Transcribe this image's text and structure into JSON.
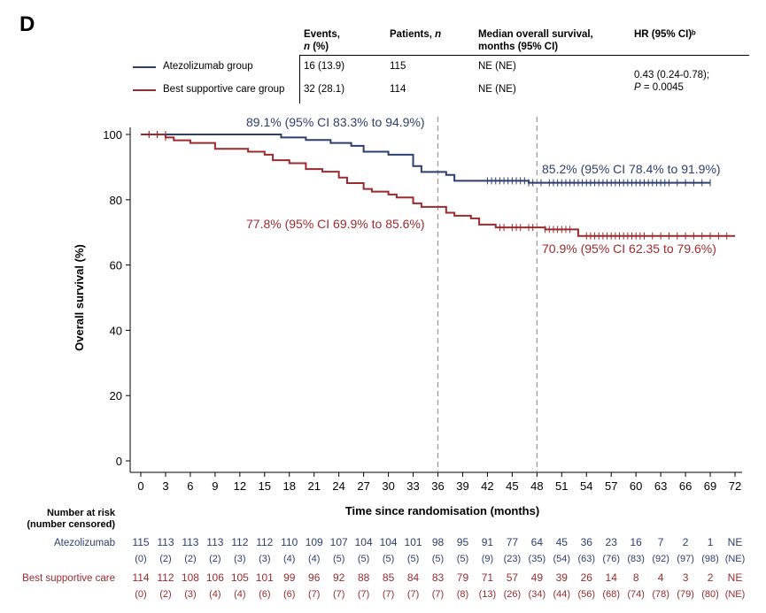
{
  "panel_label": "D",
  "summary_table": {
    "headers": {
      "events": [
        "Events,",
        "n (%)"
      ],
      "patients": "Patients, n",
      "median": [
        "Median overall survival,",
        "months (95% CI)"
      ],
      "hr": "HR (95% CI)ᵇ"
    },
    "rows": [
      {
        "group": "Atezolizumab group",
        "events": "16 (13.9)",
        "patients": "115",
        "median": "NE (NE)"
      },
      {
        "group": "Best supportive care group",
        "events": "32 (28.1)",
        "patients": "114",
        "median": "NE (NE)"
      }
    ],
    "hr_value": "0.43 (0.24-0.78);",
    "p_value": "P = 0.0045"
  },
  "colors": {
    "atezolizumab": "#2d3f6e",
    "bsc": "#9b2b2d",
    "dashed": "#999999"
  },
  "chart_data": {
    "type": "line",
    "step": true,
    "xlabel": "Time since randomisation (months)",
    "ylabel": "Overall survival (%)",
    "xlim": [
      0,
      72
    ],
    "ylim": [
      0,
      100
    ],
    "xticks": [
      0,
      3,
      6,
      9,
      12,
      15,
      18,
      21,
      24,
      27,
      30,
      33,
      36,
      39,
      42,
      45,
      48,
      51,
      54,
      57,
      60,
      63,
      66,
      69,
      72
    ],
    "yticks": [
      0,
      20,
      40,
      60,
      80,
      100
    ],
    "reference_lines_x": [
      36,
      48
    ],
    "series": [
      {
        "name": "Atezolizumab group",
        "color": "#2d3f6e",
        "x": [
          0,
          17,
          20,
          23,
          25.5,
          27,
          30,
          33,
          34,
          37,
          38,
          47,
          49,
          69
        ],
        "y": [
          100,
          99.1,
          98.3,
          97.4,
          96.5,
          94.7,
          93.8,
          90.3,
          88.5,
          87.6,
          85.8,
          85.2,
          85.2,
          85.2
        ],
        "censor_x": [
          1,
          2,
          3,
          42,
          42.5,
          43,
          43.5,
          44,
          44.5,
          45,
          45.5,
          46,
          46.5,
          47,
          47.5,
          48.5,
          49.5,
          50,
          50.5,
          51,
          51.5,
          52,
          52.5,
          53,
          53.5,
          54,
          54.5,
          55,
          55.5,
          56,
          56.5,
          57,
          57.5,
          58,
          58.5,
          59,
          59.5,
          60,
          60.5,
          61,
          61.5,
          62,
          62.5,
          63,
          63.5,
          64,
          65,
          66,
          67,
          68,
          69
        ]
      },
      {
        "name": "Best supportive care group",
        "color": "#9b2b2d",
        "x": [
          0,
          3,
          4,
          6,
          9,
          13,
          15,
          16,
          18,
          20,
          22,
          24,
          25,
          27,
          28,
          30,
          31,
          33,
          34,
          37,
          38,
          40,
          41,
          43,
          48,
          49,
          53,
          72
        ],
        "y": [
          100,
          99.1,
          98.2,
          97.4,
          95.6,
          94.7,
          93.8,
          92.1,
          91.2,
          89.4,
          88.6,
          86.8,
          85.1,
          83.3,
          82.5,
          81.6,
          80.7,
          78.9,
          77.8,
          76.0,
          75.1,
          74.3,
          72.4,
          71.5,
          71.5,
          70.9,
          68.9,
          68.9
        ],
        "censor_x": [
          1,
          2,
          3,
          43.5,
          44,
          45,
          45.5,
          46,
          47,
          47.5,
          49,
          49.5,
          50,
          50.5,
          51,
          51.5,
          52,
          54,
          54.5,
          55,
          55.5,
          56,
          56.5,
          57,
          57.5,
          58,
          58.5,
          59,
          59.5,
          60,
          60.5,
          61,
          62,
          63,
          64,
          65,
          66,
          67,
          68,
          69,
          70,
          71
        ]
      }
    ],
    "annotations": [
      {
        "text": "89.1% (95% CI 83.3% to 94.9%)",
        "series": 0
      },
      {
        "text": "85.2% (95% CI 78.4% to 91.9%)",
        "series": 0
      },
      {
        "text": "77.8% (95% CI 69.9% to 85.6%)",
        "series": 1
      },
      {
        "text": "70.9% (95% CI 62.35 to 79.6%)",
        "series": 1
      }
    ]
  },
  "risk_table": {
    "title": [
      "Number at risk",
      "(number censored)"
    ],
    "rows": [
      {
        "label": "Atezolizumab",
        "at_risk": [
          "115",
          "113",
          "113",
          "113",
          "112",
          "112",
          "110",
          "109",
          "107",
          "104",
          "104",
          "101",
          "98",
          "95",
          "91",
          "77",
          "64",
          "45",
          "36",
          "23",
          "16",
          "7",
          "2",
          "1",
          "NE"
        ],
        "censored": [
          "(0)",
          "(2)",
          "(2)",
          "(2)",
          "(3)",
          "(3)",
          "(4)",
          "(4)",
          "(5)",
          "(5)",
          "(5)",
          "(5)",
          "(5)",
          "(5)",
          "(9)",
          "(23)",
          "(35)",
          "(54)",
          "(63)",
          "(76)",
          "(83)",
          "(92)",
          "(97)",
          "(98)",
          "(NE)"
        ]
      },
      {
        "label": "Best supportive care",
        "at_risk": [
          "114",
          "112",
          "108",
          "106",
          "105",
          "101",
          "99",
          "96",
          "92",
          "88",
          "85",
          "84",
          "83",
          "79",
          "71",
          "57",
          "49",
          "39",
          "26",
          "14",
          "8",
          "4",
          "3",
          "2",
          "NE"
        ],
        "censored": [
          "(0)",
          "(2)",
          "(3)",
          "(4)",
          "(4)",
          "(6)",
          "(6)",
          "(7)",
          "(7)",
          "(7)",
          "(7)",
          "(7)",
          "(7)",
          "(8)",
          "(13)",
          "(26)",
          "(34)",
          "(44)",
          "(56)",
          "(68)",
          "(74)",
          "(78)",
          "(79)",
          "(80)",
          "(NE)"
        ]
      }
    ]
  }
}
